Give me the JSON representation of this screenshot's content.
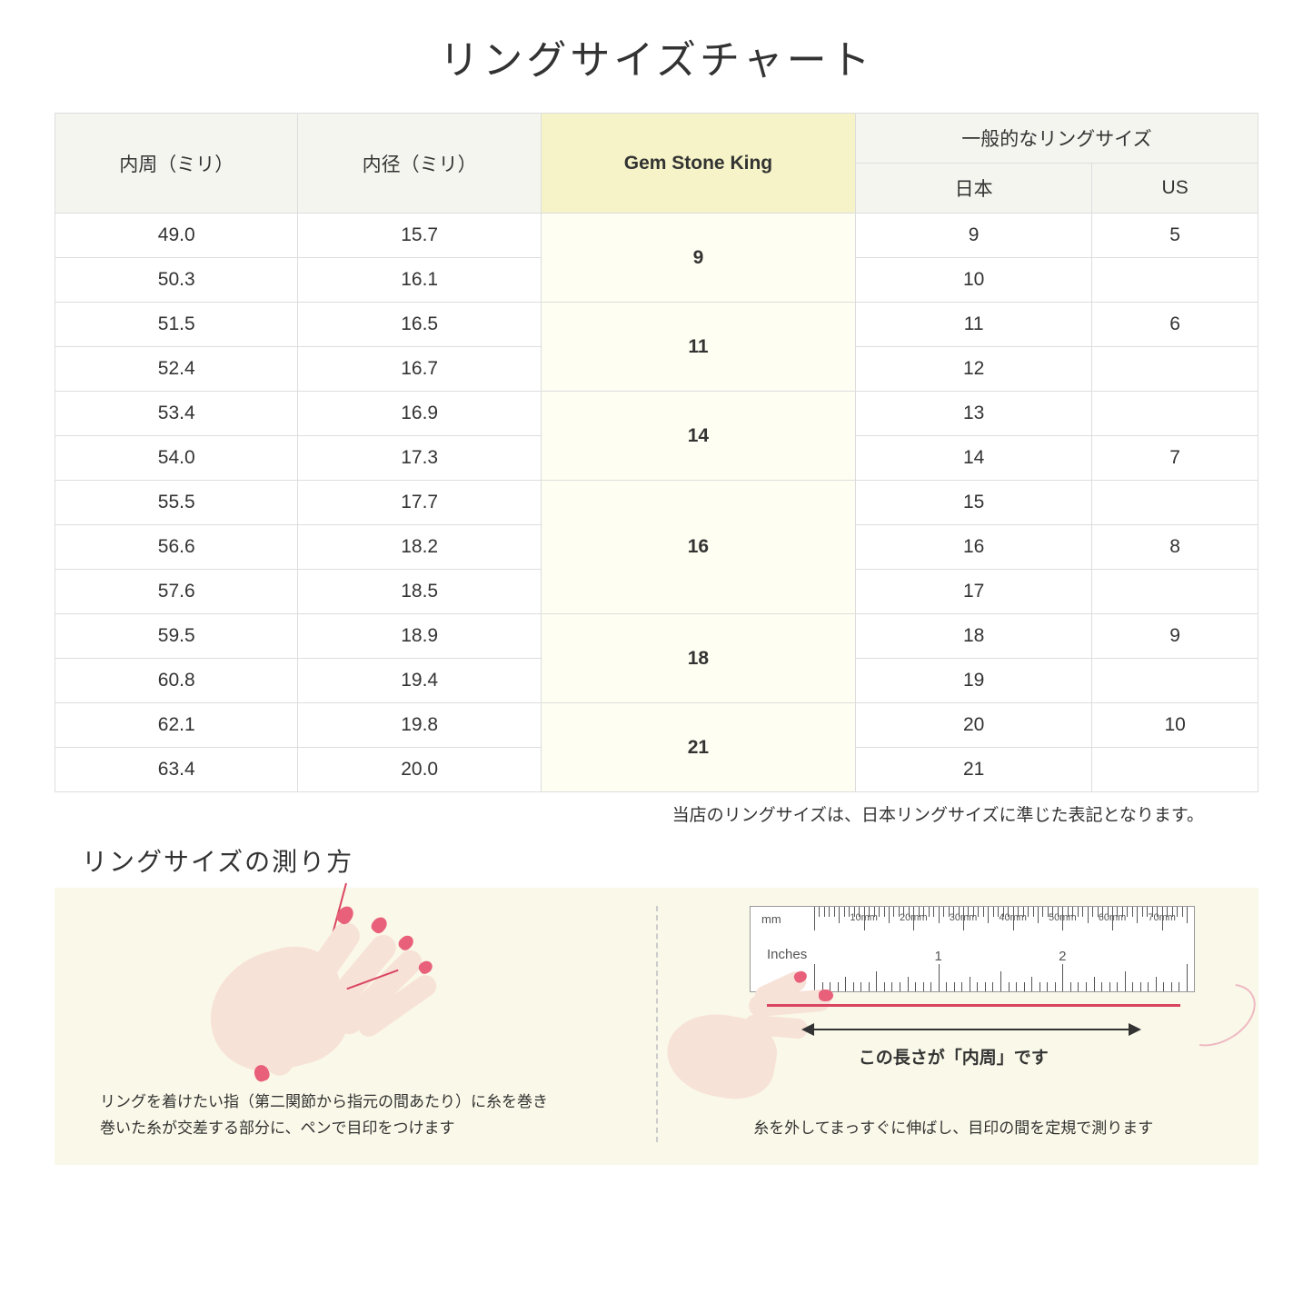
{
  "title": "リングサイズチャート",
  "headers": {
    "circumference": "内周（ミリ）",
    "diameter": "内径（ミリ）",
    "gsk": "Gem Stone King",
    "general": "一般的なリングサイズ",
    "japan": "日本",
    "us": "US"
  },
  "groups": [
    {
      "gsk": "9",
      "rows": [
        {
          "c": "49.0",
          "d": "15.7",
          "jp": "9",
          "us": "5"
        },
        {
          "c": "50.3",
          "d": "16.1",
          "jp": "10",
          "us": ""
        }
      ]
    },
    {
      "gsk": "11",
      "rows": [
        {
          "c": "51.5",
          "d": "16.5",
          "jp": "11",
          "us": "6"
        },
        {
          "c": "52.4",
          "d": "16.7",
          "jp": "12",
          "us": ""
        }
      ]
    },
    {
      "gsk": "14",
      "rows": [
        {
          "c": "53.4",
          "d": "16.9",
          "jp": "13",
          "us": ""
        },
        {
          "c": "54.0",
          "d": "17.3",
          "jp": "14",
          "us": "7"
        }
      ]
    },
    {
      "gsk": "16",
      "rows": [
        {
          "c": "55.5",
          "d": "17.7",
          "jp": "15",
          "us": ""
        },
        {
          "c": "56.6",
          "d": "18.2",
          "jp": "16",
          "us": "8"
        },
        {
          "c": "57.6",
          "d": "18.5",
          "jp": "17",
          "us": ""
        }
      ]
    },
    {
      "gsk": "18",
      "rows": [
        {
          "c": "59.5",
          "d": "18.9",
          "jp": "18",
          "us": "9"
        },
        {
          "c": "60.8",
          "d": "19.4",
          "jp": "19",
          "us": ""
        }
      ]
    },
    {
      "gsk": "21",
      "rows": [
        {
          "c": "62.1",
          "d": "19.8",
          "jp": "20",
          "us": "10"
        },
        {
          "c": "63.4",
          "d": "20.0",
          "jp": "21",
          "us": ""
        }
      ]
    }
  ],
  "note": "当店のリングサイズは、日本リングサイズに準じた表記となります。",
  "howto": {
    "title": "リングサイズの測り方",
    "left_caption": "リングを着けたい指（第二関節から指元の間あたり）に糸を巻き\n巻いた糸が交差する部分に、ペンで目印をつけます",
    "right_caption": "糸を外してまっすぐに伸ばし、目印の間を定規で測ります",
    "arrow_label": "この長さが「内周」です",
    "ruler_mm": "mm",
    "ruler_inches": "Inches",
    "mm_labels": [
      "10mm",
      "20mm",
      "30mm",
      "40mm",
      "50mm",
      "60mm",
      "70mm"
    ],
    "inch_labels": [
      "1",
      "2"
    ]
  },
  "style": {
    "header_bg": "#f5f5f0",
    "gsk_header_bg": "#f5f3c7",
    "gsk_cell_bg": "#fefef2",
    "border_color": "#dddddd",
    "howto_bg": "#faf8e8",
    "skin_color": "#f7e2d8",
    "nail_color": "#e8607a",
    "thread_color": "#d94560",
    "title_fontsize": 44,
    "cell_fontsize": 21,
    "note_fontsize": 19,
    "subtitle_fontsize": 28,
    "caption_fontsize": 17
  }
}
